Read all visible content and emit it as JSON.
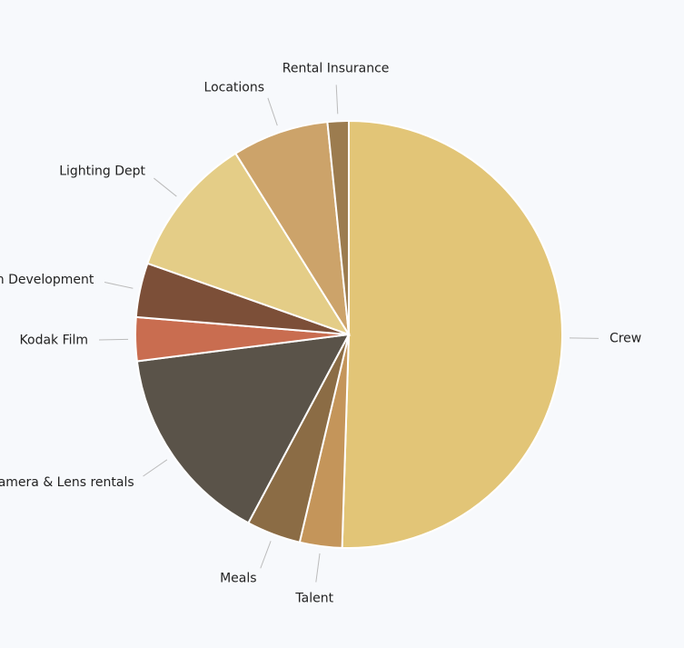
{
  "chart_data": {
    "type": "pie",
    "categories": [
      "Crew",
      "Talent",
      "Meals",
      "Camera & Lens rentals",
      "Kodak Film",
      "Film Development",
      "Lighting Dept",
      "Locations",
      "Rental Insurance"
    ],
    "values": [
      50.5,
      3.2,
      4.1,
      15.2,
      3.3,
      4.1,
      10.7,
      7.3,
      1.6
    ],
    "colors": [
      "#e2c577",
      "#c4955a",
      "#8b6c45",
      "#5a5349",
      "#c96d50",
      "#7c4f38",
      "#e4cd87",
      "#cca36a",
      "#9c7c4f"
    ]
  }
}
